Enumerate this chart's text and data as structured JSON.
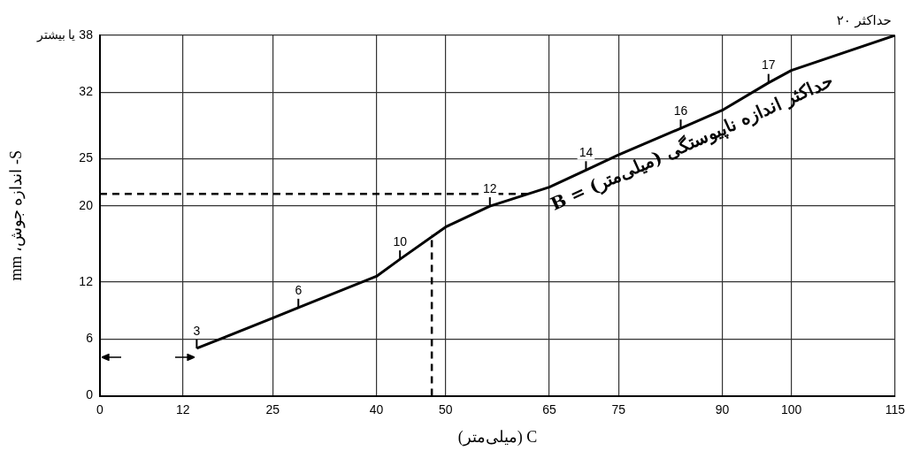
{
  "chart_data": {
    "type": "line",
    "xlabel": "C (میلی‌متر)",
    "ylabel": "S- اندازه جوش، mm",
    "series": [
      {
        "name": "حداکثر اندازه ناپیوستگی (میلی‌متر) = B",
        "color": "#000000",
        "x": [
          14,
          25,
          28.7,
          40,
          43.4,
          50,
          56.4,
          65,
          70.3,
          75,
          84,
          90,
          96.7,
          100,
          115
        ],
        "values": [
          5,
          8.2,
          9.3,
          12.6,
          14.4,
          17.8,
          20,
          22,
          23.8,
          25.4,
          28.2,
          30.1,
          33,
          34.3,
          38
        ]
      },
      {
        "color": "#000000",
        "line_style": "dashed",
        "x": [
          0,
          62
        ],
        "values": [
          21.3,
          21.3
        ]
      },
      {
        "color": "#000000",
        "line_style": "dashed",
        "x": [
          48,
          48
        ],
        "values": [
          0,
          17
        ]
      }
    ],
    "xlim": [
      0,
      115
    ],
    "xticks": [
      0,
      12,
      25,
      40,
      50,
      65,
      75,
      90,
      100,
      115
    ],
    "ylim": [
      0,
      38
    ],
    "yticks": [
      0,
      6,
      12,
      20,
      25,
      32,
      {
        "value": 38,
        "label": "38 یا بیشتر"
      }
    ],
    "annotations": [
      "حداکثر ۲۰",
      {
        "text": "3",
        "x": 14,
        "y": 5
      },
      {
        "text": "6",
        "x": 28.7,
        "y": 9.3
      },
      {
        "text": "10",
        "x": 43.4,
        "y": 14.4
      },
      {
        "text": "12",
        "x": 56.4,
        "y": 20
      },
      {
        "text": "14",
        "x": 70.3,
        "y": 23.8
      },
      {
        "text": "16",
        "x": 84,
        "y": 28.2
      },
      {
        "text": "17",
        "x": 96.7,
        "y": 33
      }
    ],
    "grid": true,
    "legend": false,
    "marker": "none",
    "line_style": "solid"
  }
}
